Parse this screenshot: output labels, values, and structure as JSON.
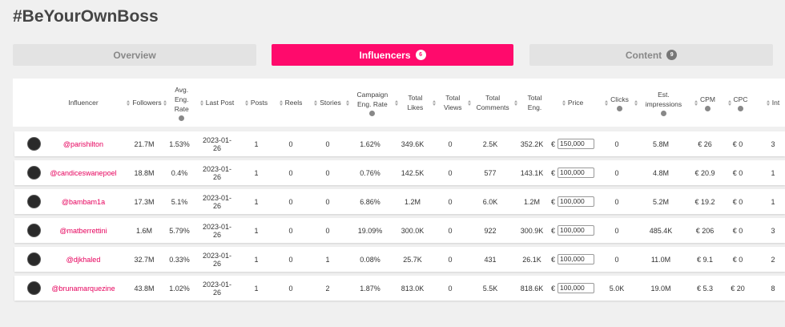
{
  "header": {
    "title": "#BeYourOwnBoss"
  },
  "tabs": [
    {
      "label": "Overview"
    },
    {
      "label": "Influencers",
      "badge": "6"
    },
    {
      "label": "Content",
      "badge": "9"
    }
  ],
  "table": {
    "columns": [
      "Influencer",
      "Followers",
      "Avg. Eng. Rate",
      "Last Post",
      "Posts",
      "Reels",
      "Stories",
      "Campaign Eng. Rate",
      "Total Likes",
      "Total Views",
      "Total Comments",
      "Total Eng.",
      "Price",
      "Clicks",
      "Est. impressions",
      "CPM",
      "CPC",
      "Int"
    ],
    "rows": [
      [
        "@parishilton",
        "21.7M",
        "1.53%",
        "2023-01-26",
        "1",
        "0",
        "0",
        "1.62%",
        "349.6K",
        "0",
        "2.5K",
        "352.2K",
        {
          "currency": "€",
          "amount": "150,000"
        },
        "0",
        "5.8M",
        "€ 26",
        "€ 0",
        "3"
      ],
      [
        "@candiceswanepoel",
        "18.8M",
        "0.4%",
        "2023-01-26",
        "1",
        "0",
        "0",
        "0.76%",
        "142.5K",
        "0",
        "577",
        "143.1K",
        {
          "currency": "€",
          "amount": "100,000"
        },
        "0",
        "4.8M",
        "€ 20.9",
        "€ 0",
        "1"
      ],
      [
        "@bambam1a",
        "17.3M",
        "5.1%",
        "2023-01-26",
        "1",
        "0",
        "0",
        "6.86%",
        "1.2M",
        "0",
        "6.0K",
        "1.2M",
        {
          "currency": "€",
          "amount": "100,000"
        },
        "0",
        "5.2M",
        "€ 19.2",
        "€ 0",
        "1"
      ],
      [
        "@matberrettini",
        "1.6M",
        "5.79%",
        "2023-01-26",
        "1",
        "0",
        "0",
        "19.09%",
        "300.0K",
        "0",
        "922",
        "300.9K",
        {
          "currency": "€",
          "amount": "100,000"
        },
        "0",
        "485.4K",
        "€ 206",
        "€ 0",
        "3"
      ],
      [
        "@djkhaled",
        "32.7M",
        "0.33%",
        "2023-01-26",
        "1",
        "0",
        "1",
        "0.08%",
        "25.7K",
        "0",
        "431",
        "26.1K",
        {
          "currency": "€",
          "amount": "100,000"
        },
        "0",
        "11.0M",
        "€ 9.1",
        "€ 0",
        "2"
      ],
      [
        "@brunamarquezine",
        "43.8M",
        "1.02%",
        "2023-01-26",
        "1",
        "0",
        "2",
        "1.87%",
        "813.0K",
        "0",
        "5.5K",
        "818.6K",
        {
          "currency": "€",
          "amount": "100,000"
        },
        "5.0K",
        "19.0M",
        "€ 5.3",
        "€ 20",
        "8"
      ]
    ]
  }
}
